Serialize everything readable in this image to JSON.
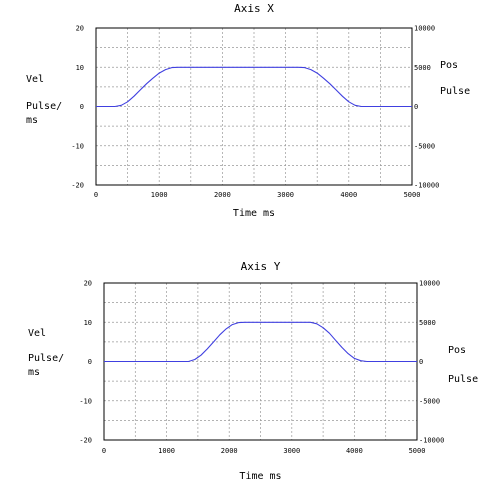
{
  "chart_data": [
    {
      "type": "line",
      "title": "Axis X",
      "xlabel": "Time ms",
      "ylabel_left": [
        "Vel",
        "Pulse/",
        "ms"
      ],
      "ylabel_right": [
        "Pos",
        "Pulse"
      ],
      "xlim": [
        0,
        5000
      ],
      "ylim_left": [
        -20,
        20
      ],
      "ylim_right": [
        -10000,
        10000
      ],
      "x_ticks": [
        "0",
        "1000",
        "2000",
        "3000",
        "4000",
        "5000"
      ],
      "y_ticks_left": [
        "20",
        "10",
        "0",
        "-10",
        "-20"
      ],
      "y_ticks_right": [
        "10000",
        "5000",
        "0",
        "-5000",
        "-10000"
      ],
      "grid": true,
      "line_color": "#4040e0",
      "series": [
        {
          "x": [
            0,
            300,
            400,
            500,
            600,
            700,
            800,
            900,
            1000,
            1100,
            1200,
            1300,
            3200,
            3300,
            3400,
            3500,
            3600,
            3700,
            3800,
            3900,
            4000,
            4100,
            4200,
            5000
          ],
          "values": [
            0,
            0,
            0.3,
            1.2,
            2.6,
            4.2,
            5.8,
            7.2,
            8.5,
            9.4,
            9.9,
            10,
            10,
            9.9,
            9.4,
            8.5,
            7.2,
            5.8,
            4.2,
            2.6,
            1.2,
            0.3,
            0,
            0
          ]
        }
      ]
    },
    {
      "type": "line",
      "title": "Axis Y",
      "xlabel": "Time ms",
      "ylabel_left": [
        "Vel",
        "Pulse/",
        "ms"
      ],
      "ylabel_right": [
        "Pos",
        "Pulse"
      ],
      "xlim": [
        0,
        5000
      ],
      "ylim_left": [
        -20,
        20
      ],
      "ylim_right": [
        -10000,
        10000
      ],
      "x_ticks": [
        "0",
        "1000",
        "2000",
        "3000",
        "4000",
        "5000"
      ],
      "y_ticks_left": [
        "20",
        "10",
        "0",
        "-10",
        "-20"
      ],
      "y_ticks_right": [
        "10000",
        "5000",
        "0",
        "-5000",
        "-10000"
      ],
      "grid": true,
      "line_color": "#4040e0",
      "series": [
        {
          "x": [
            0,
            1350,
            1450,
            1550,
            1650,
            1750,
            1850,
            1950,
            2050,
            2150,
            2250,
            3300,
            3400,
            3500,
            3600,
            3700,
            3800,
            3900,
            4000,
            4100,
            4200,
            5000
          ],
          "values": [
            0,
            0,
            0.5,
            1.6,
            3.2,
            5.0,
            6.8,
            8.3,
            9.4,
            9.9,
            10,
            10,
            9.6,
            8.6,
            7.2,
            5.4,
            3.6,
            2.0,
            0.8,
            0.2,
            0,
            0
          ]
        }
      ]
    }
  ]
}
